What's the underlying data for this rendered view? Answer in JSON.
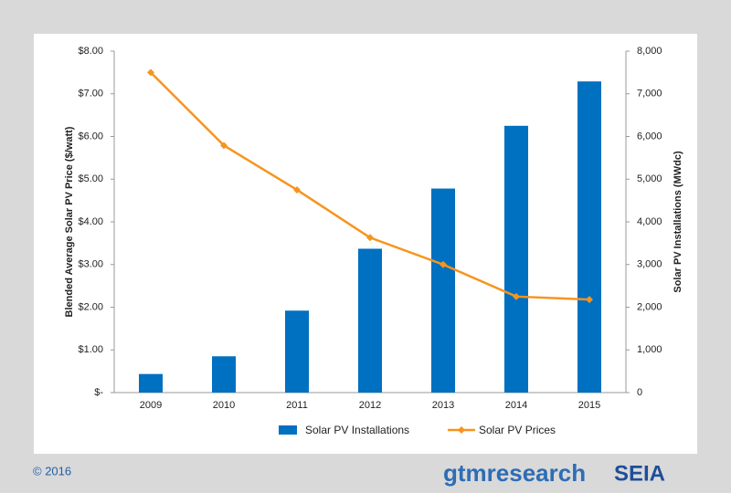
{
  "chart_data": {
    "type": "bar",
    "categories": [
      "2009",
      "2010",
      "2011",
      "2012",
      "2013",
      "2014",
      "2015"
    ],
    "series": [
      {
        "name": "Solar PV Installations",
        "type": "bar",
        "axis": "y2",
        "color": "#0070c0",
        "values": [
          435,
          850,
          1920,
          3370,
          4780,
          6250,
          7290
        ]
      },
      {
        "name": "Solar PV Prices",
        "type": "line",
        "color": "#f7941d",
        "values": [
          7.5,
          5.79,
          4.75,
          3.63,
          3.0,
          2.25,
          2.18
        ]
      }
    ],
    "ylabel": "Blended Average Solar PV Price ($/watt)",
    "y2label": "Solar PV Installations (MWdc)",
    "ylim": [
      0,
      8
    ],
    "yticks": [
      {
        "value": 0,
        "label": "$-"
      },
      {
        "value": 1,
        "label": "$1.00"
      },
      {
        "value": 2,
        "label": "$2.00"
      },
      {
        "value": 3,
        "label": "$3.00"
      },
      {
        "value": 4,
        "label": "$4.00"
      },
      {
        "value": 5,
        "label": "$5.00"
      },
      {
        "value": 6,
        "label": "$6.00"
      },
      {
        "value": 7,
        "label": "$7.00"
      },
      {
        "value": 8,
        "label": "$8.00"
      }
    ],
    "y2lim": [
      0,
      8000
    ],
    "y2ticks": [
      0,
      {
        "value": 1000,
        "label": "1,000"
      },
      {
        "value": 2000,
        "label": "2,000"
      },
      {
        "value": 3000,
        "label": "3,000"
      },
      {
        "value": 4000,
        "label": "4,000"
      },
      {
        "value": 5000,
        "label": "5,000"
      },
      {
        "value": 6000,
        "label": "6,000"
      },
      {
        "value": 7000,
        "label": "7,000"
      },
      {
        "value": 8000,
        "label": "8,000"
      }
    ],
    "legend": "bottom"
  },
  "footer": {
    "copyright": "© 2016",
    "logo": "gtmresearch",
    "logo2": "SEIA"
  }
}
